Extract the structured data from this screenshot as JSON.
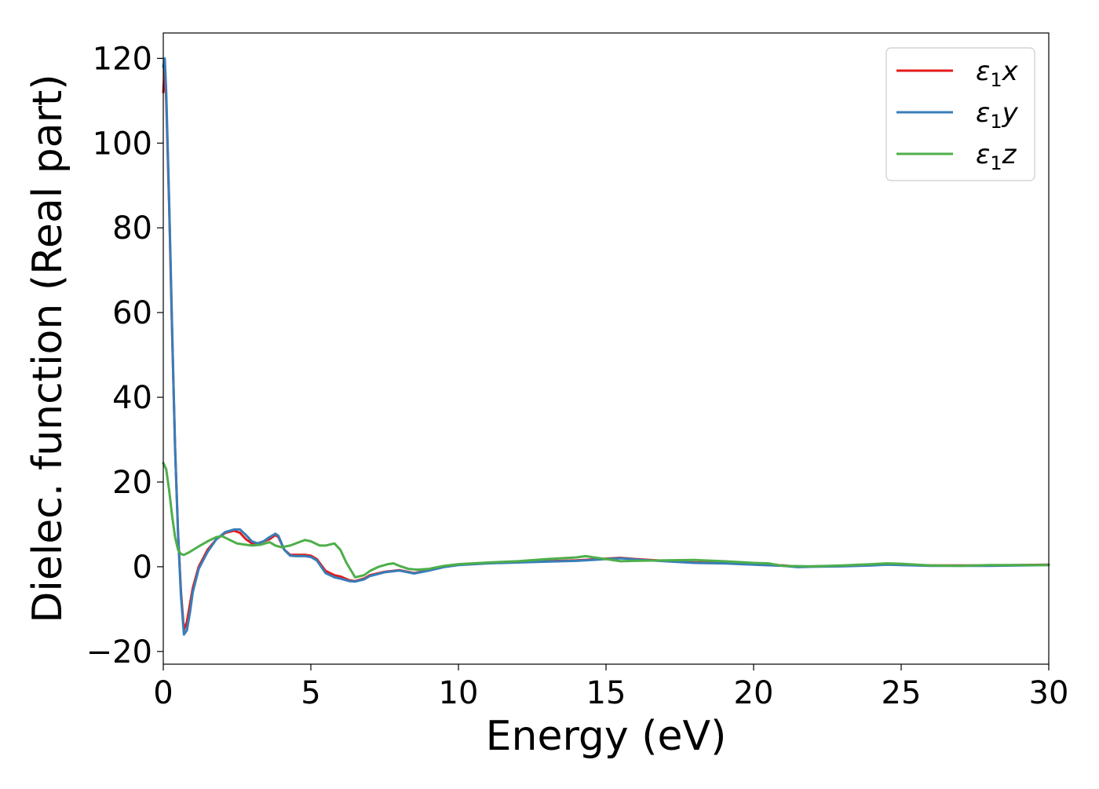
{
  "chart_data": {
    "type": "line",
    "title": "",
    "xlabel": "Energy (eV)",
    "ylabel": "Dielec. function (Real part)",
    "xlim": [
      0,
      30
    ],
    "ylim": [
      -23,
      126
    ],
    "xticks": [
      0,
      5,
      10,
      15,
      20,
      25,
      30
    ],
    "xtick_labels": [
      "0",
      "5",
      "10",
      "15",
      "20",
      "25",
      "30"
    ],
    "yticks": [
      -20,
      0,
      20,
      40,
      60,
      80,
      100,
      120
    ],
    "ytick_labels": [
      "−20",
      "0",
      "20",
      "40",
      "60",
      "80",
      "100",
      "120"
    ],
    "grid": false,
    "legend": {
      "placement": "top-right"
    },
    "series": [
      {
        "name": "ε₁x",
        "legend_base": "ε",
        "legend_sub": "1",
        "legend_var": "x",
        "color": "#e41a1c",
        "x": [
          0,
          0.05,
          0.1,
          0.2,
          0.3,
          0.4,
          0.5,
          0.6,
          0.7,
          0.8,
          0.9,
          1.0,
          1.2,
          1.5,
          1.8,
          2.1,
          2.4,
          2.6,
          2.8,
          3.0,
          3.2,
          3.4,
          3.6,
          3.8,
          3.9,
          4.1,
          4.3,
          4.5,
          4.8,
          5.0,
          5.2,
          5.5,
          5.8,
          6.0,
          6.3,
          6.5,
          6.8,
          7.0,
          7.5,
          8.0,
          8.5,
          9.0,
          9.5,
          10,
          11,
          12,
          13,
          14,
          15,
          15.5,
          16,
          17,
          18,
          19,
          20,
          21,
          21.5,
          22,
          23,
          24,
          24.5,
          25,
          26,
          27,
          28,
          29,
          30
        ],
        "y": [
          112,
          118,
          110,
          85,
          55,
          28,
          8,
          -6,
          -15,
          -13,
          -9,
          -5,
          0,
          4,
          6.5,
          8,
          8.5,
          8,
          6.5,
          5.5,
          5.5,
          6,
          6.5,
          7.5,
          7,
          4,
          2.8,
          2.8,
          2.8,
          2.6,
          1.8,
          -1,
          -2,
          -2.3,
          -3.2,
          -3.4,
          -2.8,
          -2,
          -1.2,
          -0.8,
          -1.5,
          -0.8,
          0,
          0.5,
          0.9,
          1.1,
          1.3,
          1.5,
          1.9,
          2.1,
          1.8,
          1.4,
          1.0,
          0.9,
          0.6,
          0.3,
          0.0,
          0.1,
          0.2,
          0.4,
          0.6,
          0.5,
          0.3,
          0.3,
          0.3,
          0.4,
          0.5
        ]
      },
      {
        "name": "ε₁y",
        "legend_base": "ε",
        "legend_sub": "1",
        "legend_var": "y",
        "color": "#377eb8",
        "x": [
          0,
          0.05,
          0.1,
          0.2,
          0.3,
          0.4,
          0.5,
          0.6,
          0.7,
          0.8,
          0.9,
          1.0,
          1.2,
          1.5,
          1.8,
          2.1,
          2.4,
          2.6,
          2.8,
          3.0,
          3.2,
          3.4,
          3.6,
          3.8,
          3.9,
          4.1,
          4.3,
          4.5,
          4.8,
          5.0,
          5.2,
          5.5,
          5.8,
          6.0,
          6.3,
          6.5,
          6.8,
          7.0,
          7.5,
          8.0,
          8.5,
          9.0,
          9.5,
          10,
          11,
          12,
          13,
          14,
          15,
          15.5,
          16,
          17,
          18,
          19,
          20,
          21,
          21.5,
          22,
          23,
          24,
          24.5,
          25,
          26,
          27,
          28,
          29,
          30
        ],
        "y": [
          118,
          120,
          112,
          86,
          56,
          28,
          8,
          -7,
          -16,
          -15,
          -11,
          -6,
          -0.5,
          3.5,
          6.5,
          8.2,
          8.8,
          8.8,
          7.5,
          6,
          5.5,
          6,
          7,
          7.8,
          7.3,
          4,
          2.6,
          2.5,
          2.5,
          2.3,
          1.5,
          -1.5,
          -2.5,
          -2.8,
          -3.4,
          -3.5,
          -3.0,
          -2.2,
          -1.3,
          -0.9,
          -1.6,
          -0.9,
          -0.1,
          0.4,
          0.8,
          1.0,
          1.2,
          1.4,
          1.8,
          2.0,
          1.7,
          1.3,
          0.9,
          0.8,
          0.5,
          0.2,
          -0.1,
          0.0,
          0.1,
          0.3,
          0.5,
          0.4,
          0.2,
          0.2,
          0.2,
          0.3,
          0.4
        ]
      },
      {
        "name": "ε₁z",
        "legend_base": "ε",
        "legend_sub": "1",
        "legend_var": "z",
        "color": "#4daf4a",
        "x": [
          0,
          0.1,
          0.2,
          0.3,
          0.4,
          0.5,
          0.6,
          0.7,
          0.9,
          1.2,
          1.5,
          1.8,
          2.0,
          2.2,
          2.5,
          2.8,
          3.0,
          3.3,
          3.6,
          3.8,
          4.0,
          4.3,
          4.6,
          4.8,
          5.0,
          5.3,
          5.5,
          5.8,
          6.0,
          6.2,
          6.5,
          6.8,
          7.0,
          7.3,
          7.6,
          7.8,
          8.0,
          8.3,
          8.6,
          9.0,
          9.5,
          10,
          11,
          12,
          13,
          14,
          14.3,
          15,
          15.5,
          16,
          17,
          18,
          19,
          20,
          20.5,
          21,
          22,
          23,
          24,
          24.5,
          25,
          26,
          27,
          28,
          29,
          30
        ],
        "y": [
          24.5,
          23,
          18,
          12,
          7,
          4,
          3,
          2.8,
          3.5,
          4.8,
          6,
          7,
          7.2,
          6.5,
          5.5,
          5.2,
          5,
          5.2,
          5.8,
          5,
          4.6,
          5,
          5.8,
          6.3,
          6,
          5,
          5,
          5.5,
          4,
          1,
          -2.5,
          -2,
          -1,
          0,
          0.6,
          0.8,
          0.2,
          -0.5,
          -0.7,
          -0.5,
          0.2,
          0.6,
          1.0,
          1.3,
          1.8,
          2.2,
          2.5,
          1.8,
          1.3,
          1.4,
          1.5,
          1.6,
          1.3,
          0.9,
          0.8,
          0.2,
          0.1,
          0.3,
          0.6,
          0.8,
          0.7,
          0.3,
          0.2,
          0.4,
          0.4,
          0.4
        ]
      }
    ]
  }
}
